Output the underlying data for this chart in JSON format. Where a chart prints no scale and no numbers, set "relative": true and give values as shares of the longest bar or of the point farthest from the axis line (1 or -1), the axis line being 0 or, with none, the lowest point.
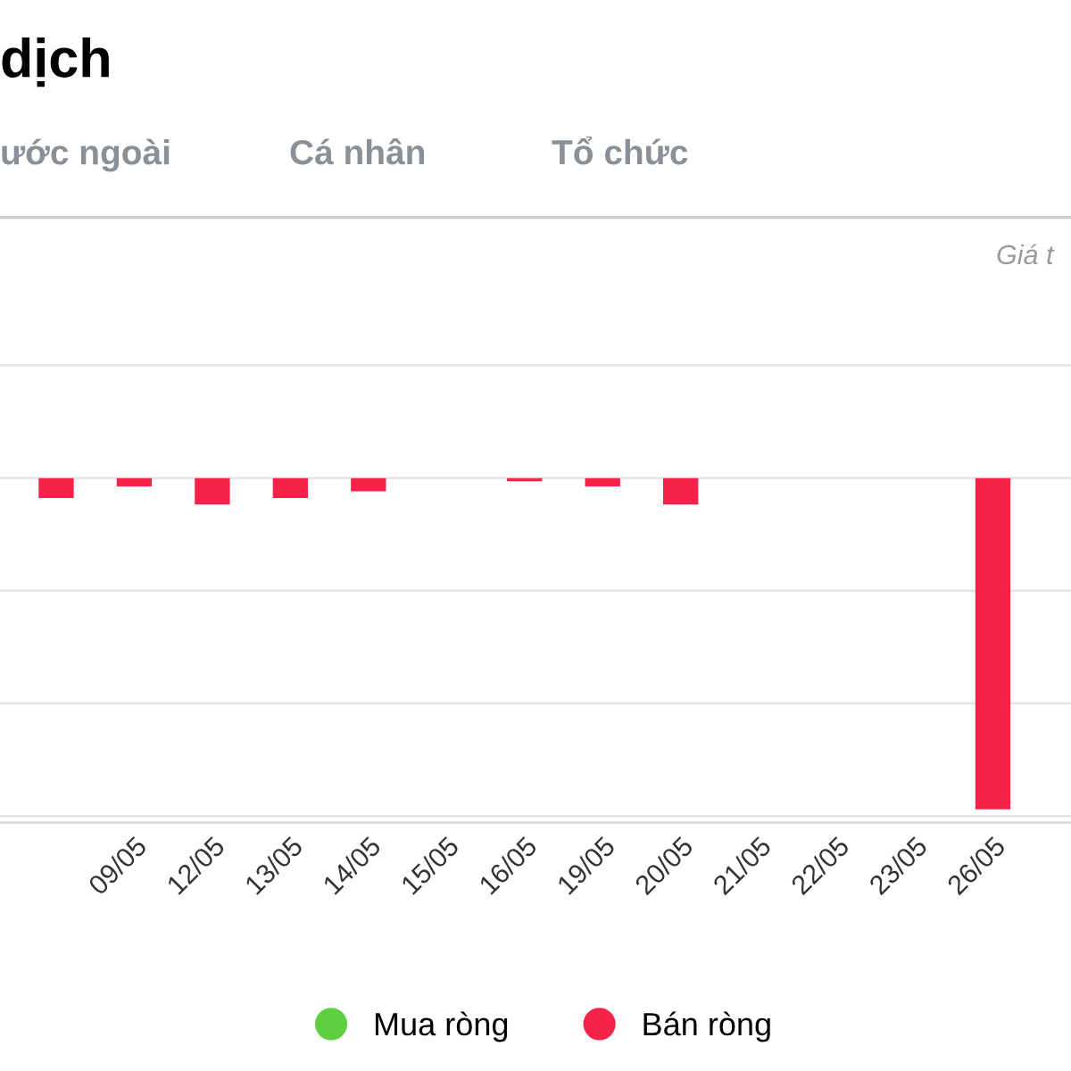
{
  "chart_data": {
    "type": "bar",
    "title": "dịch",
    "relative": true,
    "annotations": [
      "ước ngoài",
      "Cá nhân",
      "Tổ chức",
      "Giá t"
    ],
    "categories": [
      null,
      "09/05",
      "12/05",
      "13/05",
      "14/05",
      "15/05",
      "16/05",
      "19/05",
      "20/05",
      "21/05",
      "22/05",
      "23/05",
      "26/05",
      null
    ],
    "series": [
      {
        "name": "Mua ròng",
        "color": "#5ecf3f",
        "values": [
          null,
          null,
          null,
          null,
          null,
          null,
          null,
          null,
          null,
          null,
          null,
          null,
          null,
          null
        ]
      },
      {
        "name": "Bán ròng",
        "color": "#f5224a",
        "values": [
          -0.06,
          -0.025,
          -0.08,
          -0.06,
          -0.04,
          0,
          -0.01,
          -0.025,
          -0.08,
          0,
          0,
          0,
          -1,
          null
        ]
      }
    ],
    "ref_lines": [
      {
        "axis": "y",
        "value": 0.34,
        "color": "#e6e6e6"
      },
      {
        "axis": "y",
        "value": 0,
        "color": "#e6e6e6"
      },
      {
        "axis": "y",
        "value": -0.34,
        "color": "#e6e6e6"
      },
      {
        "axis": "y",
        "value": -0.68,
        "color": "#e6e6e6"
      },
      {
        "axis": "y",
        "value": -1.02,
        "color": "#e6e6e6"
      }
    ],
    "legend": "bottom"
  }
}
